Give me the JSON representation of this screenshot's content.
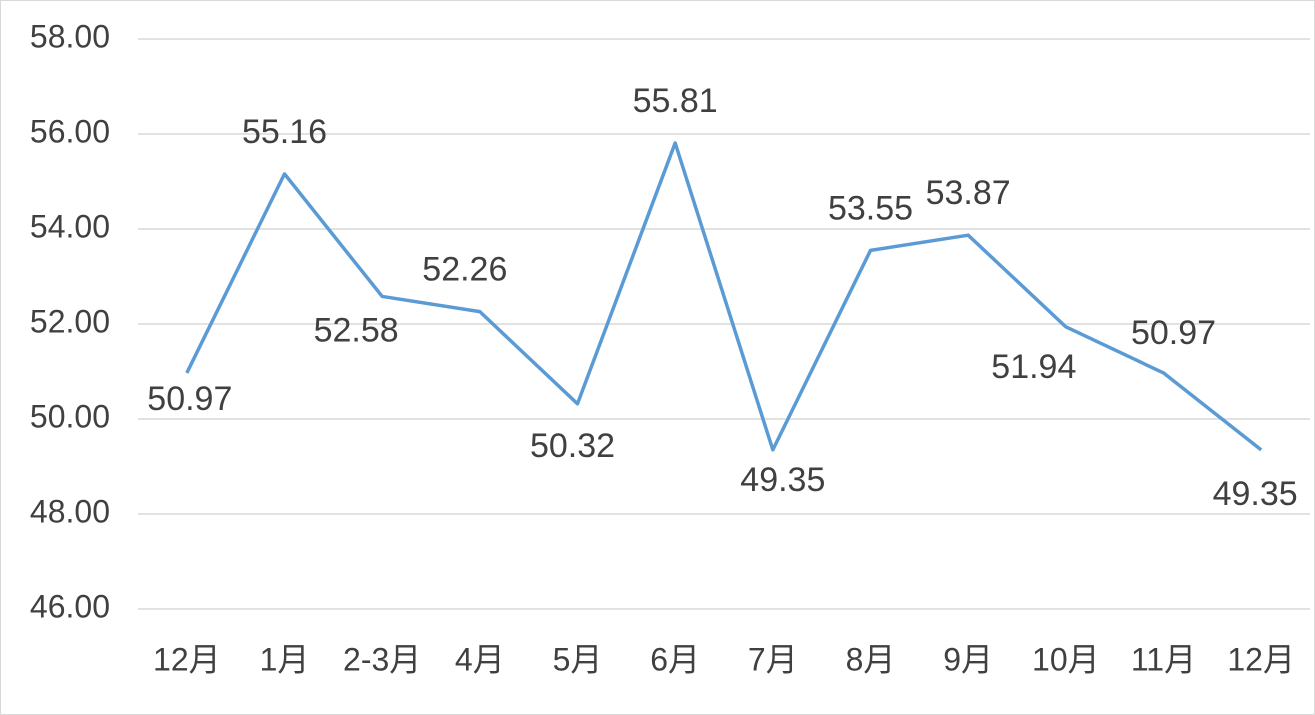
{
  "chart_data": {
    "type": "line",
    "categories": [
      "12月",
      "1月",
      "2-3月",
      "4月",
      "5月",
      "6月",
      "7月",
      "8月",
      "9月",
      "10月",
      "11月",
      "12月"
    ],
    "series": [
      {
        "color": "#5b9bd5",
        "values": [
          50.97,
          55.16,
          52.58,
          52.26,
          50.32,
          55.81,
          49.35,
          53.55,
          53.87,
          51.94,
          50.97,
          49.35
        ]
      }
    ],
    "ylim": [
      46,
      58
    ],
    "yticks": [
      {
        "value": 46,
        "label": "46.00"
      },
      {
        "value": 48,
        "label": "48.00"
      },
      {
        "value": 50,
        "label": "50.00"
      },
      {
        "value": 52,
        "label": "52.00"
      },
      {
        "value": 54,
        "label": "54.00"
      },
      {
        "value": 56,
        "label": "56.00"
      },
      {
        "value": 58,
        "label": "58.00"
      }
    ],
    "grid": true
  }
}
